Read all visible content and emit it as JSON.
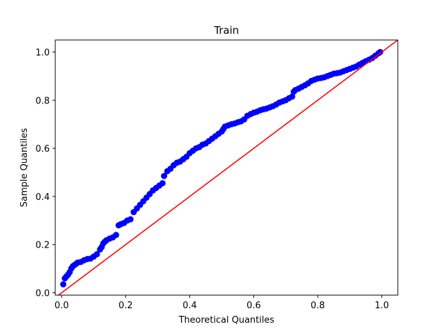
{
  "chart_data": {
    "type": "scatter",
    "title": "Train",
    "xlabel": "Theoretical Quantiles",
    "ylabel": "Sample Quantiles",
    "xlim": [
      -0.02,
      1.05
    ],
    "ylim": [
      -0.01,
      1.05
    ],
    "xticks": [
      {
        "value": 0.0,
        "label": "0.0"
      },
      {
        "value": 0.2,
        "label": "0.2"
      },
      {
        "value": 0.4,
        "label": "0.4"
      },
      {
        "value": 0.6,
        "label": "0.6"
      },
      {
        "value": 0.8,
        "label": "0.8"
      },
      {
        "value": 1.0,
        "label": "1.0"
      }
    ],
    "yticks": [
      {
        "value": 0.0,
        "label": "0.0"
      },
      {
        "value": 0.2,
        "label": "0.2"
      },
      {
        "value": 0.4,
        "label": "0.4"
      },
      {
        "value": 0.6,
        "label": "0.6"
      },
      {
        "value": 0.8,
        "label": "0.8"
      },
      {
        "value": 1.0,
        "label": "1.0"
      }
    ],
    "grid": false,
    "point_color": "#0000ff",
    "reference_line": {
      "color": "#ff0000",
      "from": [
        -0.02,
        -0.02
      ],
      "to": [
        1.05,
        1.05
      ]
    },
    "points": {
      "x": [
        0.005,
        0.01,
        0.015,
        0.02,
        0.025,
        0.03,
        0.035,
        0.04,
        0.045,
        0.05,
        0.06,
        0.07,
        0.08,
        0.09,
        0.1,
        0.11,
        0.12,
        0.125,
        0.13,
        0.135,
        0.14,
        0.15,
        0.16,
        0.17,
        0.178,
        0.185,
        0.195,
        0.205,
        0.215,
        0.225,
        0.235,
        0.245,
        0.255,
        0.265,
        0.275,
        0.285,
        0.295,
        0.305,
        0.315,
        0.32,
        0.33,
        0.34,
        0.35,
        0.36,
        0.37,
        0.38,
        0.39,
        0.4,
        0.41,
        0.42,
        0.43,
        0.44,
        0.45,
        0.46,
        0.47,
        0.48,
        0.49,
        0.5,
        0.505,
        0.51,
        0.52,
        0.53,
        0.54,
        0.55,
        0.56,
        0.57,
        0.58,
        0.59,
        0.6,
        0.61,
        0.62,
        0.63,
        0.64,
        0.65,
        0.66,
        0.67,
        0.68,
        0.69,
        0.7,
        0.71,
        0.72,
        0.725,
        0.73,
        0.74,
        0.75,
        0.76,
        0.77,
        0.78,
        0.79,
        0.8,
        0.81,
        0.82,
        0.83,
        0.84,
        0.85,
        0.86,
        0.87,
        0.88,
        0.89,
        0.9,
        0.91,
        0.92,
        0.93,
        0.94,
        0.95,
        0.96,
        0.97,
        0.98,
        0.99,
        0.995
      ],
      "y": [
        0.035,
        0.06,
        0.068,
        0.075,
        0.085,
        0.1,
        0.11,
        0.115,
        0.12,
        0.125,
        0.128,
        0.135,
        0.14,
        0.142,
        0.15,
        0.16,
        0.18,
        0.19,
        0.205,
        0.212,
        0.218,
        0.225,
        0.23,
        0.24,
        0.28,
        0.285,
        0.29,
        0.3,
        0.305,
        0.335,
        0.35,
        0.365,
        0.38,
        0.395,
        0.41,
        0.425,
        0.435,
        0.445,
        0.455,
        0.485,
        0.505,
        0.515,
        0.53,
        0.54,
        0.545,
        0.555,
        0.565,
        0.58,
        0.59,
        0.6,
        0.605,
        0.615,
        0.62,
        0.63,
        0.64,
        0.65,
        0.66,
        0.67,
        0.68,
        0.69,
        0.695,
        0.7,
        0.703,
        0.708,
        0.712,
        0.72,
        0.735,
        0.742,
        0.748,
        0.752,
        0.758,
        0.762,
        0.765,
        0.77,
        0.775,
        0.782,
        0.79,
        0.795,
        0.8,
        0.808,
        0.815,
        0.835,
        0.842,
        0.848,
        0.855,
        0.862,
        0.87,
        0.88,
        0.885,
        0.89,
        0.892,
        0.895,
        0.9,
        0.905,
        0.91,
        0.912,
        0.915,
        0.92,
        0.925,
        0.93,
        0.935,
        0.94,
        0.948,
        0.955,
        0.962,
        0.968,
        0.975,
        0.985,
        0.995,
        1.0
      ]
    }
  }
}
